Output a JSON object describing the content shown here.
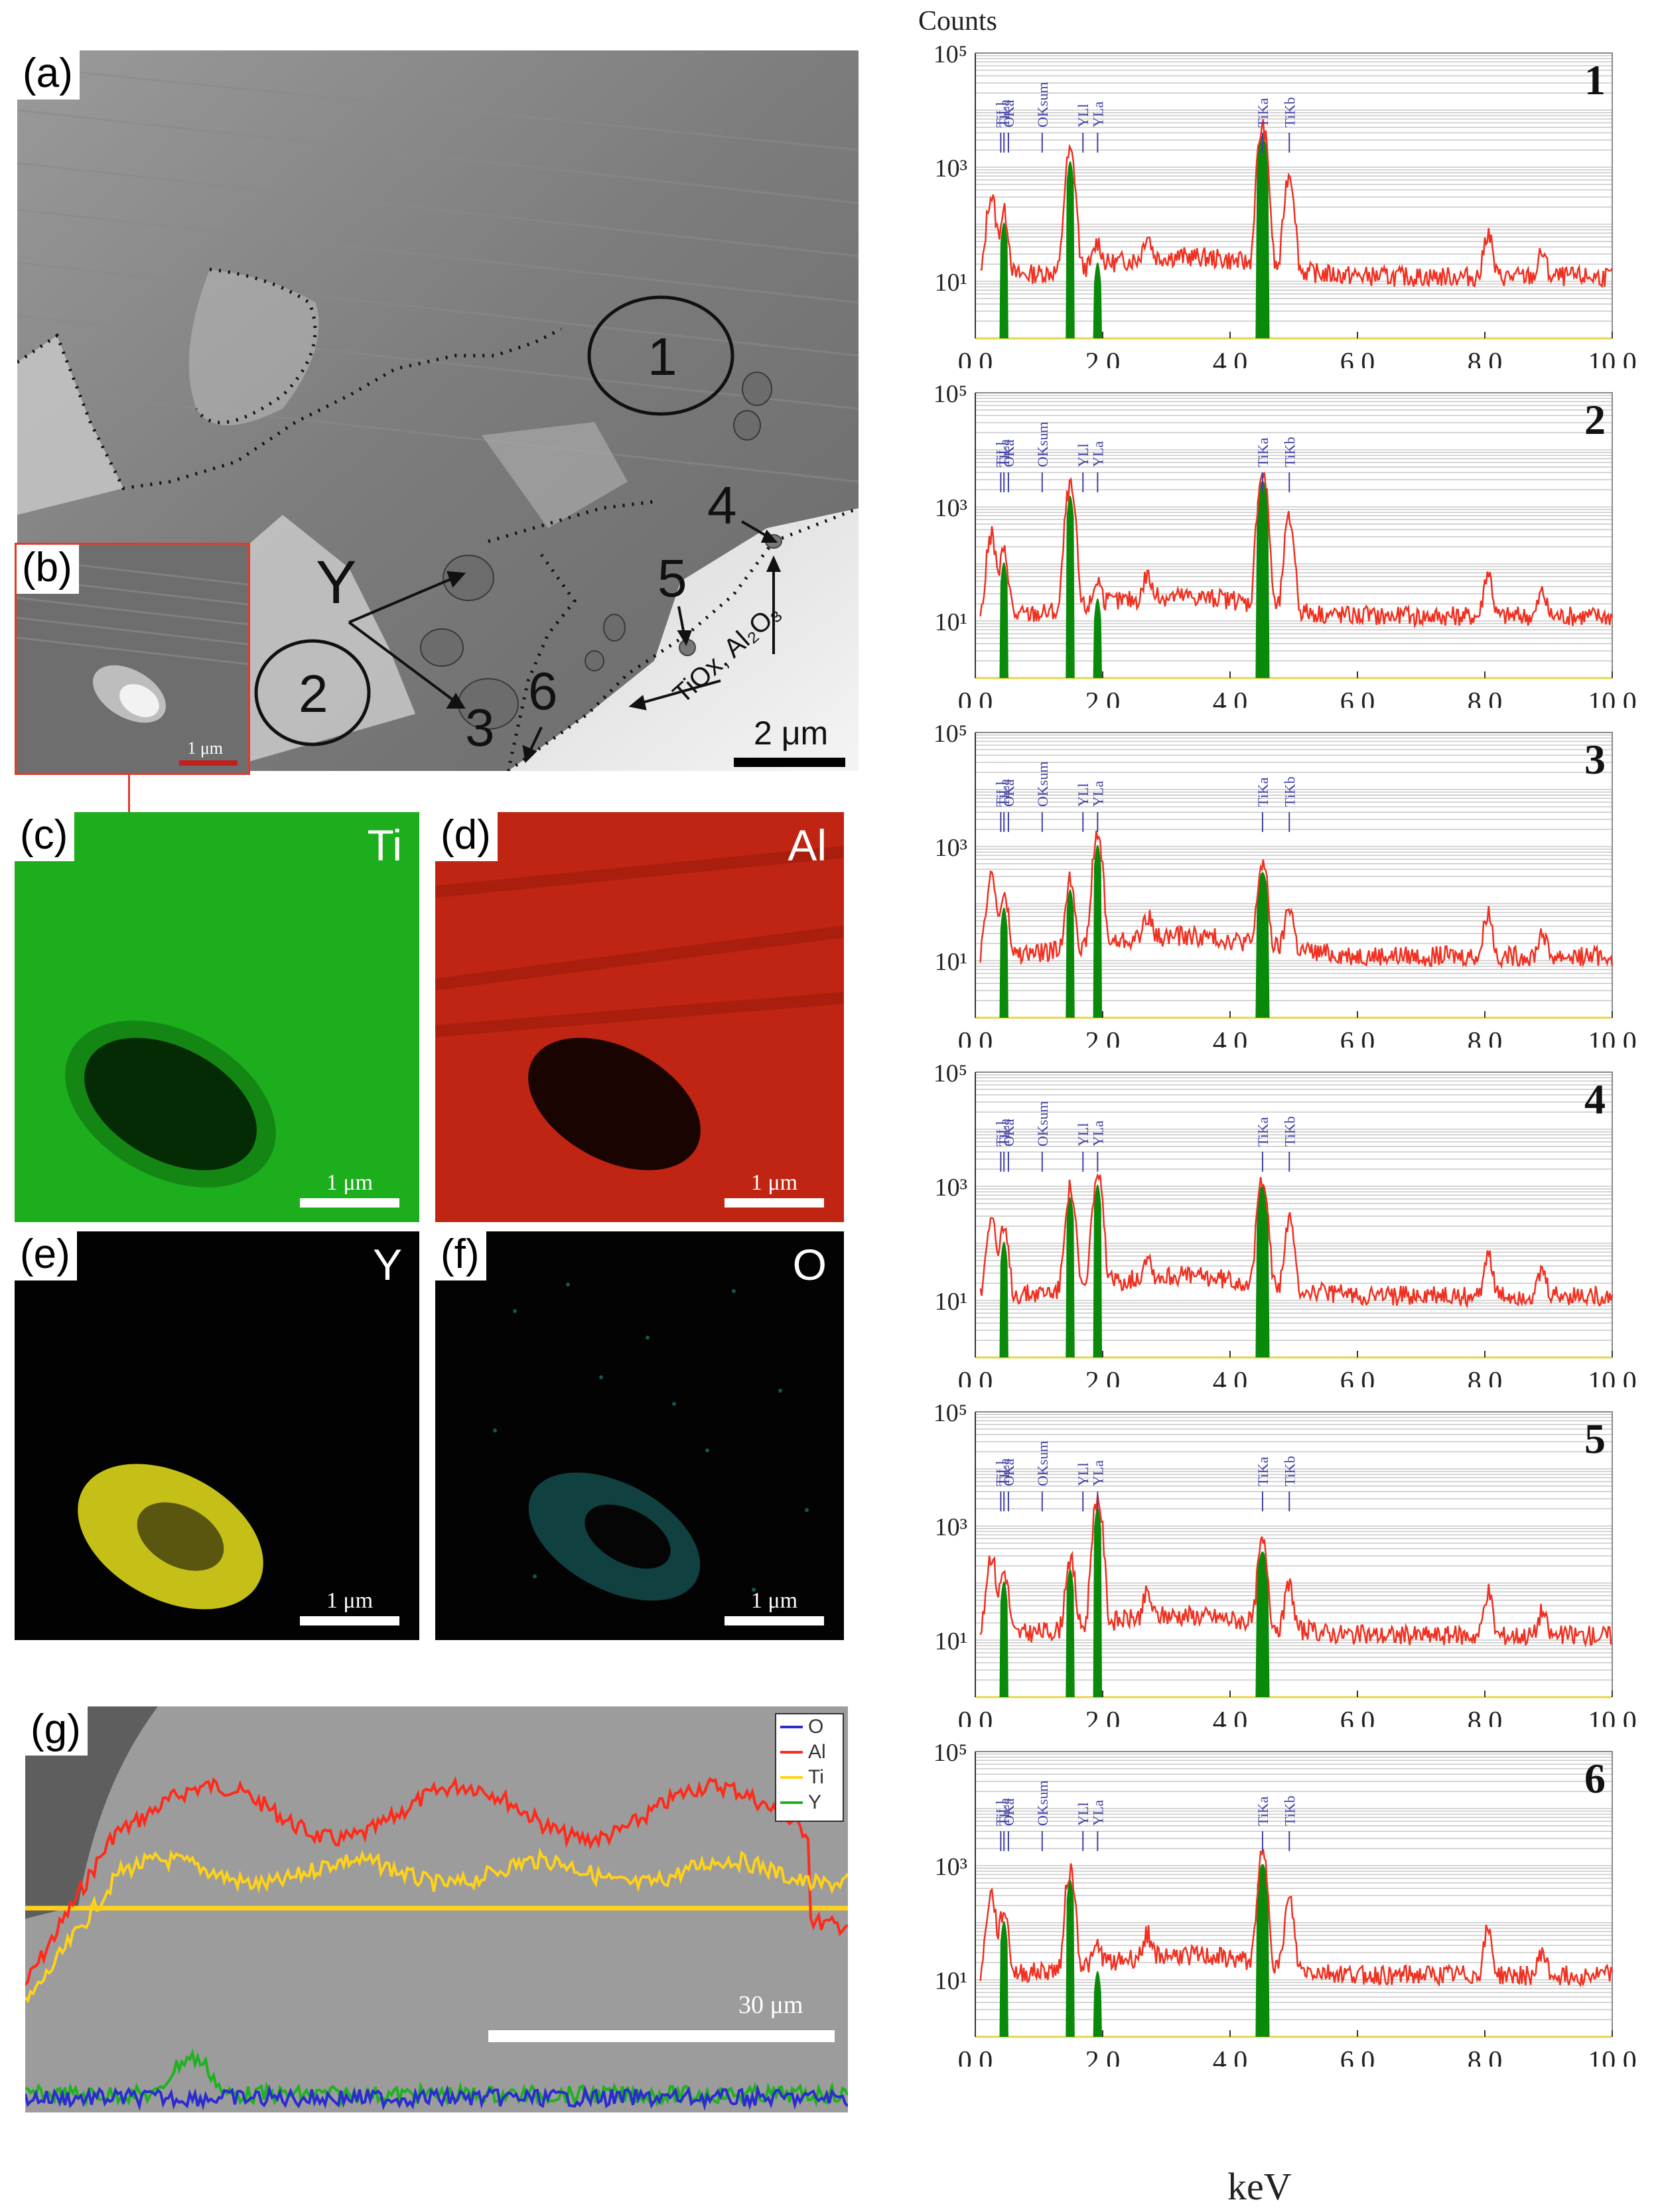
{
  "figure": {
    "panels": {
      "a": {
        "label": "(a)",
        "scale": "2 μm",
        "region_labels": [
          "1",
          "2"
        ],
        "point_labels": [
          "3",
          "4",
          "5",
          "6"
        ],
        "phase_label": "Y",
        "oxide_label": "TiOx, Al₂O₃"
      },
      "b": {
        "label": "(b)",
        "scale": "1 μm"
      },
      "c": {
        "label": "(c)",
        "element": "Ti",
        "scale": "1 μm",
        "color": "#1fb21f"
      },
      "d": {
        "label": "(d)",
        "element": "Al",
        "scale": "1 μm",
        "color": "#c8230f"
      },
      "e": {
        "label": "(e)",
        "element": "Y",
        "scale": "1 μm",
        "color": "#d8d21a"
      },
      "f": {
        "label": "(f)",
        "element": "O",
        "scale": "1 μm",
        "color": "#2fd4d4"
      },
      "g": {
        "label": "(g)",
        "scale": "30 μm",
        "legend": [
          "O",
          "Al",
          "Ti",
          "Y"
        ],
        "legend_colors": [
          "#2b2bd0",
          "#ff2a1a",
          "#ffd21a",
          "#1fb21f"
        ]
      }
    }
  },
  "chart_data": [
    {
      "type": "line",
      "number": "1",
      "ylabel": "Counts",
      "yscale": "log",
      "yticks": [
        "10⁵",
        "10³",
        "10¹"
      ],
      "xlim": [
        0,
        10
      ],
      "xticks": [
        "0.0",
        "2.0",
        "4.0",
        "6.0",
        "8.0",
        "10.0"
      ],
      "peaks": [
        {
          "label": "TiLl",
          "x": 0.4
        },
        {
          "label": "TiLa",
          "x": 0.45
        },
        {
          "label": "OKa",
          "x": 0.52
        },
        {
          "label": "OKsum",
          "x": 1.05
        },
        {
          "label": "YLl",
          "x": 1.69
        },
        {
          "label": "YLa",
          "x": 1.92
        },
        {
          "label": "TiKa",
          "x": 4.51
        },
        {
          "label": "TiKb",
          "x": 4.93
        }
      ],
      "bars": [
        {
          "x": 0.45,
          "y": 150
        },
        {
          "x": 1.49,
          "y": 1800
        },
        {
          "x": 1.92,
          "y": 30
        },
        {
          "x": 4.51,
          "y": 5000
        }
      ]
    },
    {
      "type": "line",
      "number": "2",
      "yscale": "log",
      "yticks": [
        "10⁵",
        "10³",
        "10¹"
      ],
      "xlim": [
        0,
        10
      ],
      "xticks": [
        "0.0",
        "2.0",
        "4.0",
        "6.0",
        "8.0",
        "10.0"
      ],
      "peaks": [
        {
          "label": "TiLl",
          "x": 0.4
        },
        {
          "label": "TiLa",
          "x": 0.45
        },
        {
          "label": "OKa",
          "x": 0.52
        },
        {
          "label": "OKsum",
          "x": 1.05
        },
        {
          "label": "YLl",
          "x": 1.69
        },
        {
          "label": "YLa",
          "x": 1.92
        },
        {
          "label": "TiKa",
          "x": 4.51
        },
        {
          "label": "TiKb",
          "x": 4.93
        }
      ],
      "bars": [
        {
          "x": 0.45,
          "y": 150
        },
        {
          "x": 1.49,
          "y": 2200
        },
        {
          "x": 1.92,
          "y": 35
        },
        {
          "x": 4.51,
          "y": 4000
        }
      ]
    },
    {
      "type": "line",
      "number": "3",
      "yscale": "log",
      "yticks": [
        "10⁵",
        "10³",
        "10¹"
      ],
      "xlim": [
        0,
        10
      ],
      "xticks": [
        "0.0",
        "2.0",
        "4.0",
        "6.0",
        "8.0",
        "10.0"
      ],
      "peaks": [
        {
          "label": "TiLl",
          "x": 0.4
        },
        {
          "label": "TiLa",
          "x": 0.45
        },
        {
          "label": "OKa",
          "x": 0.52
        },
        {
          "label": "OKsum",
          "x": 1.05
        },
        {
          "label": "YLl",
          "x": 1.69
        },
        {
          "label": "YLa",
          "x": 1.92
        },
        {
          "label": "TiKa",
          "x": 4.51
        },
        {
          "label": "TiKb",
          "x": 4.93
        }
      ],
      "bars": [
        {
          "x": 0.45,
          "y": 120
        },
        {
          "x": 1.49,
          "y": 250
        },
        {
          "x": 1.92,
          "y": 1500
        },
        {
          "x": 4.51,
          "y": 500
        }
      ]
    },
    {
      "type": "line",
      "number": "4",
      "yscale": "log",
      "yticks": [
        "10⁵",
        "10³",
        "10¹"
      ],
      "xlim": [
        0,
        10
      ],
      "xticks": [
        "0.0",
        "2.0",
        "4.0",
        "6.0",
        "8.0",
        "10.0"
      ],
      "peaks": [
        {
          "label": "TiLl",
          "x": 0.4
        },
        {
          "label": "TiLa",
          "x": 0.45
        },
        {
          "label": "OKa",
          "x": 0.52
        },
        {
          "label": "OKsum",
          "x": 1.05
        },
        {
          "label": "YLl",
          "x": 1.69
        },
        {
          "label": "YLa",
          "x": 1.92
        },
        {
          "label": "TiKa",
          "x": 4.51
        },
        {
          "label": "TiKb",
          "x": 4.93
        }
      ],
      "bars": [
        {
          "x": 0.45,
          "y": 150
        },
        {
          "x": 1.49,
          "y": 900
        },
        {
          "x": 1.92,
          "y": 1500
        },
        {
          "x": 4.51,
          "y": 1500
        }
      ]
    },
    {
      "type": "line",
      "number": "5",
      "yscale": "log",
      "yticks": [
        "10⁵",
        "10³",
        "10¹"
      ],
      "xlim": [
        0,
        10
      ],
      "xticks": [
        "0.0",
        "2.0",
        "4.0",
        "6.0",
        "8.0",
        "10.0"
      ],
      "peaks": [
        {
          "label": "TiLl",
          "x": 0.4
        },
        {
          "label": "TiLa",
          "x": 0.45
        },
        {
          "label": "OKa",
          "x": 0.52
        },
        {
          "label": "OKsum",
          "x": 1.05
        },
        {
          "label": "YLl",
          "x": 1.69
        },
        {
          "label": "YLa",
          "x": 1.92
        },
        {
          "label": "TiKa",
          "x": 4.51
        },
        {
          "label": "TiKb",
          "x": 4.93
        }
      ],
      "bars": [
        {
          "x": 0.45,
          "y": 150
        },
        {
          "x": 1.49,
          "y": 250
        },
        {
          "x": 1.92,
          "y": 3000
        },
        {
          "x": 4.51,
          "y": 500
        }
      ]
    },
    {
      "type": "line",
      "number": "6",
      "xlabel": "keV",
      "yscale": "log",
      "yticks": [
        "10⁵",
        "10³",
        "10¹"
      ],
      "xlim": [
        0,
        10
      ],
      "xticks": [
        "0.0",
        "2.0",
        "4.0",
        "6.0",
        "8.0",
        "10.0"
      ],
      "peaks": [
        {
          "label": "TiLl",
          "x": 0.4
        },
        {
          "label": "TiLa",
          "x": 0.45
        },
        {
          "label": "OKa",
          "x": 0.52
        },
        {
          "label": "OKsum",
          "x": 1.05
        },
        {
          "label": "YLl",
          "x": 1.69
        },
        {
          "label": "YLa",
          "x": 1.92
        },
        {
          "label": "TiKa",
          "x": 4.51
        },
        {
          "label": "TiKb",
          "x": 4.93
        }
      ],
      "bars": [
        {
          "x": 0.45,
          "y": 150
        },
        {
          "x": 1.49,
          "y": 800
        },
        {
          "x": 1.92,
          "y": 20
        },
        {
          "x": 4.51,
          "y": 1500
        }
      ]
    }
  ]
}
